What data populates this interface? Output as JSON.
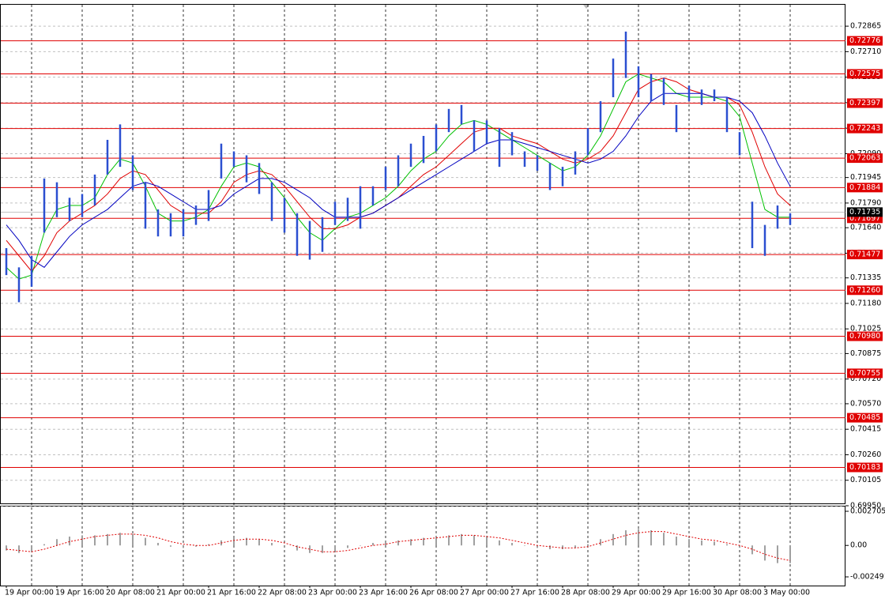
{
  "chart_data": [
    {
      "type": "ohlc",
      "categories": [
        "19 Apr 00:00",
        null,
        null,
        null,
        "19 Apr 16:00",
        null,
        null,
        null,
        "20 Apr 08:00",
        null,
        null,
        null,
        "21 Apr 00:00",
        null,
        null,
        null,
        "21 Apr 16:00",
        null,
        null,
        null,
        "22 Apr 08:00",
        null,
        null,
        null,
        "23 Apr 00:00",
        null,
        null,
        null,
        "23 Apr 16:00",
        null,
        null,
        null,
        "26 Apr 08:00",
        null,
        null,
        null,
        "27 Apr 00:00",
        null,
        null,
        null,
        "27 Apr 16:00",
        null,
        null,
        null,
        "28 Apr 08:00",
        null,
        null,
        null,
        "29 Apr 00:00",
        null,
        null,
        null,
        "29 Apr 16:00",
        null,
        null,
        null,
        "30 Apr 08:00",
        null,
        null,
        null,
        "3 May 00:00",
        null,
        null
      ],
      "color": "#2b4fd0",
      "high": [
        0.71516,
        0.71399,
        0.71469,
        0.71939,
        0.71916,
        0.71822,
        0.71845,
        0.71963,
        0.72174,
        0.72268,
        0.7208,
        0.71916,
        0.71751,
        0.71728,
        0.71751,
        0.71775,
        0.71869,
        0.72151,
        0.72104,
        0.7208,
        0.72033,
        0.71916,
        0.71822,
        0.71728,
        0.71681,
        0.71704,
        0.71798,
        0.71822,
        0.71892,
        0.71892,
        0.7201,
        0.7208,
        0.72151,
        0.72198,
        0.72268,
        0.72362,
        0.72386,
        0.72292,
        0.72292,
        0.72245,
        0.72221,
        0.72104,
        0.7208,
        0.72033,
        0.7201,
        0.72104,
        0.72245,
        0.72409,
        0.72668,
        0.72832,
        0.72621,
        0.72574,
        0.7255,
        0.72386,
        0.72503,
        0.7248,
        0.7248,
        0.72433,
        0.72221,
        0.71798,
        0.71657,
        0.71775,
        0.71728
      ],
      "low": [
        0.71352,
        0.71187,
        0.71281,
        0.7161,
        0.71704,
        0.71681,
        0.71704,
        0.71775,
        0.71963,
        0.7201,
        0.71869,
        0.71634,
        0.71587,
        0.71587,
        0.71587,
        0.71657,
        0.71681,
        0.71939,
        0.7201,
        0.71916,
        0.71845,
        0.71681,
        0.7161,
        0.71469,
        0.71446,
        0.71493,
        0.71657,
        0.71681,
        0.71634,
        0.71775,
        0.71869,
        0.71892,
        0.7201,
        0.72033,
        0.72104,
        0.72221,
        0.72268,
        0.72104,
        0.72151,
        0.7201,
        0.7208,
        0.7201,
        0.71986,
        0.71869,
        0.71892,
        0.71963,
        0.7208,
        0.72221,
        0.72433,
        0.7255,
        0.72433,
        0.72409,
        0.72386,
        0.72221,
        0.72409,
        0.72386,
        0.72409,
        0.72221,
        0.7208,
        0.71516,
        0.71469,
        0.71634,
        0.71657
      ],
      "ma_lines": [
        {
          "color": "#00c000",
          "values": [
            0.71399,
            0.71328,
            0.71352,
            0.7161,
            0.71751,
            0.71775,
            0.71775,
            0.71822,
            0.71963,
            0.72057,
            0.72033,
            0.71892,
            0.71728,
            0.71681,
            0.71681,
            0.71704,
            0.71751,
            0.71892,
            0.7201,
            0.72033,
            0.7201,
            0.71916,
            0.71822,
            0.71704,
            0.7161,
            0.71563,
            0.71634,
            0.71704,
            0.71728,
            0.71775,
            0.71822,
            0.71892,
            0.71986,
            0.72057,
            0.72104,
            0.72198,
            0.72268,
            0.72292,
            0.72268,
            0.72221,
            0.72174,
            0.72127,
            0.7208,
            0.72033,
            0.71986,
            0.7201,
            0.7208,
            0.72198,
            0.72362,
            0.72527,
            0.72574,
            0.7255,
            0.72527,
            0.72456,
            0.72433,
            0.72433,
            0.72433,
            0.72409,
            0.72315,
            0.72033,
            0.71751,
            0.71704,
            0.71704
          ]
        },
        {
          "color": "#e00000",
          "values": [
            0.71563,
            0.71469,
            0.71375,
            0.71469,
            0.7161,
            0.71681,
            0.71728,
            0.71775,
            0.71845,
            0.71939,
            0.71986,
            0.71963,
            0.71869,
            0.71775,
            0.71728,
            0.71728,
            0.71728,
            0.71798,
            0.71916,
            0.71963,
            0.71986,
            0.71963,
            0.71892,
            0.71798,
            0.71704,
            0.71634,
            0.71634,
            0.71657,
            0.71704,
            0.71728,
            0.71775,
            0.71822,
            0.71892,
            0.71963,
            0.7201,
            0.7208,
            0.72151,
            0.72221,
            0.72245,
            0.72245,
            0.72198,
            0.72174,
            0.72151,
            0.72104,
            0.72057,
            0.72033,
            0.72057,
            0.72104,
            0.72198,
            0.72339,
            0.7248,
            0.72527,
            0.7255,
            0.72527,
            0.7248,
            0.72456,
            0.72433,
            0.72433,
            0.72386,
            0.72221,
            0.7201,
            0.71845,
            0.71775
          ]
        },
        {
          "color": "#0000c0",
          "values": [
            0.71657,
            0.71563,
            0.71446,
            0.71399,
            0.71493,
            0.71587,
            0.71657,
            0.71704,
            0.71751,
            0.71822,
            0.71892,
            0.71916,
            0.71892,
            0.71845,
            0.71798,
            0.71751,
            0.71751,
            0.71775,
            0.71845,
            0.71892,
            0.71939,
            0.71939,
            0.71916,
            0.71869,
            0.71822,
            0.71751,
            0.71704,
            0.71704,
            0.71704,
            0.71728,
            0.71775,
            0.71822,
            0.71869,
            0.71916,
            0.71963,
            0.7201,
            0.72057,
            0.72104,
            0.72151,
            0.72174,
            0.72174,
            0.72151,
            0.72127,
            0.72104,
            0.7208,
            0.72057,
            0.72033,
            0.72057,
            0.72104,
            0.72198,
            0.72315,
            0.72409,
            0.72456,
            0.72456,
            0.72456,
            0.72456,
            0.72433,
            0.72433,
            0.72409,
            0.72339,
            0.72198,
            0.72033,
            0.71892
          ]
        }
      ],
      "levels": {
        "color": "#e00000",
        "values": [
          0.72776,
          0.72575,
          0.72397,
          0.72243,
          0.72063,
          0.71884,
          0.71697,
          0.71477,
          0.7126,
          0.7098,
          0.70755,
          0.70485,
          0.70183
        ],
        "value_labels": [
          "0.72776",
          "0.72575",
          "0.72397",
          "0.72243",
          "0.72063",
          "0.71884",
          "0.71697",
          "0.71477",
          "0.71260",
          "0.70980",
          "0.70755",
          "0.70485",
          "0.70183"
        ]
      },
      "last_price": {
        "value": 0.71735,
        "label": "0.71735"
      },
      "ylim": [
        0.6995,
        0.73
      ],
      "yticks": [
        0.72865,
        {
          "value": 0.7271,
          "label": "0.72710"
        },
        0.72555,
        {
          "value": 0.724,
          "label": "0.72400"
        },
        0.72245,
        {
          "value": 0.7209,
          "label": "0.72090"
        },
        0.71945,
        {
          "value": 0.7179,
          "label": "0.71790"
        },
        {
          "value": 0.7164,
          "label": "0.71640"
        },
        0.71485,
        0.71335,
        {
          "value": 0.7118,
          "label": "0.71180"
        },
        0.71025,
        0.70875,
        {
          "value": 0.7072,
          "label": "0.70720"
        },
        {
          "value": 0.7057,
          "label": "0.70570"
        },
        0.70415,
        {
          "value": 0.7026,
          "label": "0.70260"
        },
        0.70105,
        {
          "value": 0.6995,
          "label": "0.69950"
        }
      ],
      "grid": true
    },
    {
      "type": "oscillator",
      "color": "#a0a0a0",
      "signal_color": "#e00000",
      "values": [
        -0.0004,
        -0.0006,
        -0.0005,
        0.0001,
        0.0005,
        0.0007,
        0.0008,
        0.0008,
        0.0009,
        0.001,
        0.0009,
        0.0006,
        0.0002,
        -0.0001,
        -0.0002,
        -0.0001,
        0.0001,
        0.0004,
        0.0006,
        0.0006,
        0.0005,
        0.0002,
        -0.0001,
        -0.0004,
        -0.0006,
        -0.0006,
        -0.0004,
        -0.0002,
        0,
        0.0002,
        0.0003,
        0.0004,
        0.0005,
        0.0006,
        0.0007,
        0.0008,
        0.0009,
        0.0008,
        0.0006,
        0.0004,
        0.0002,
        0,
        -0.0002,
        -0.0003,
        -0.0003,
        -0.0002,
        0.0001,
        0.0005,
        0.0009,
        0.0012,
        0.0013,
        0.0012,
        0.001,
        0.0007,
        0.0005,
        0.0004,
        0.0003,
        0.0001,
        -0.0001,
        -0.0007,
        -0.0012,
        -0.0014,
        -0.0014
      ],
      "signal": [
        -0.0003,
        -0.0004,
        -0.0005,
        -0.0003,
        0,
        0.0003,
        0.0005,
        0.0007,
        0.0008,
        0.0009,
        0.0009,
        0.0008,
        0.0006,
        0.0003,
        0.0001,
        0,
        0,
        0.0002,
        0.0004,
        0.0005,
        0.0005,
        0.0004,
        0.0002,
        -0.0001,
        -0.0003,
        -0.0005,
        -0.0005,
        -0.0004,
        -0.0002,
        0,
        0.0001,
        0.0003,
        0.0004,
        0.0005,
        0.0006,
        0.0007,
        0.0008,
        0.0008,
        0.0007,
        0.0006,
        0.0004,
        0.0002,
        0,
        -0.0001,
        -0.0002,
        -0.0002,
        -0.0001,
        0.0002,
        0.0005,
        0.0008,
        0.001,
        0.0011,
        0.0011,
        0.0009,
        0.0007,
        0.0005,
        0.0004,
        0.0002,
        0,
        -0.0003,
        -0.0007,
        -0.001,
        -0.0012
      ],
      "ylim": [
        -0.002491,
        0.002705
      ],
      "yticks": [
        0.002705,
        {
          "value": 0,
          "label": "0.00"
        },
        -0.002491
      ]
    }
  ]
}
